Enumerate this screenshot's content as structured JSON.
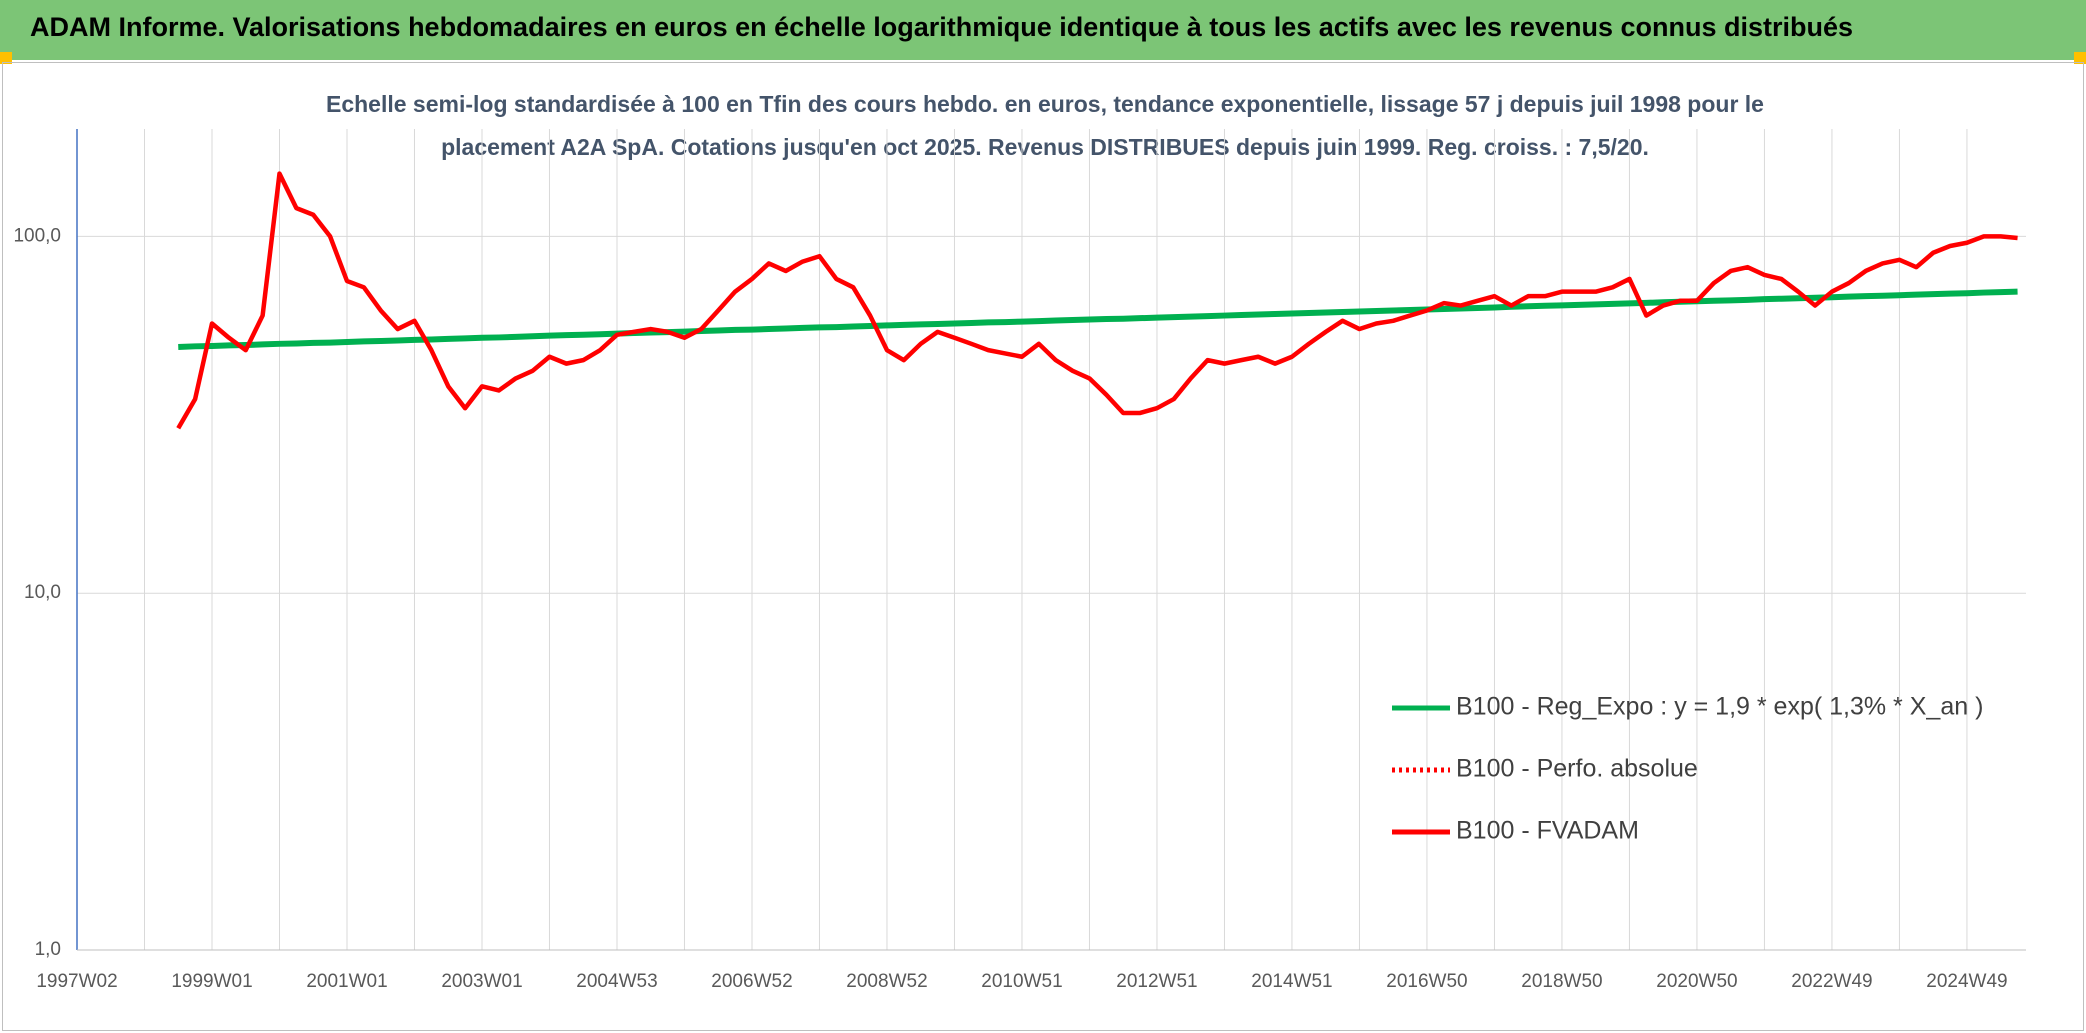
{
  "chart_data": {
    "type": "line",
    "title": "ADAM Informe. Valorisations hebdomadaires en euros en échelle logarithmique identique à tous les actifs avec les revenus connus distribués",
    "subtitle": [
      "Echelle semi-log standardisée à 100 en Tfin des cours hebdo. en euros, tendance exponentielle, lissage 57 j depuis juil 1998 pour le",
      "placement A2A SpA. Cotations jusqu'en oct 2025. Revenus DISTRIBUES depuis juin 1999. Reg. croiss. : 7,5/20."
    ],
    "categories": [
      "1997W02",
      null,
      null,
      null,
      null,
      null,
      null,
      null,
      "1999W01",
      null,
      null,
      null,
      null,
      null,
      null,
      null,
      "2001W01",
      null,
      null,
      null,
      null,
      null,
      null,
      null,
      "2003W01",
      null,
      null,
      null,
      null,
      null,
      null,
      null,
      "2004W53",
      null,
      null,
      null,
      null,
      null,
      null,
      null,
      "2006W52",
      null,
      null,
      null,
      null,
      null,
      null,
      null,
      "2008W52",
      null,
      null,
      null,
      null,
      null,
      null,
      null,
      "2010W51",
      null,
      null,
      null,
      null,
      null,
      null,
      null,
      "2012W51",
      null,
      null,
      null,
      null,
      null,
      null,
      null,
      "2014W51",
      null,
      null,
      null,
      null,
      null,
      null,
      null,
      "2016W50",
      null,
      null,
      null,
      null,
      null,
      null,
      null,
      "2018W50",
      null,
      null,
      null,
      null,
      null,
      null,
      null,
      "2020W50",
      null,
      null,
      null,
      null,
      null,
      null,
      null,
      "2022W49",
      null,
      null,
      null,
      null,
      null,
      null,
      null,
      "2024W49",
      null,
      null,
      null
    ],
    "series": [
      {
        "name": "B100 - Reg_Expo : y = 1,9 * exp( 1,3% *  X_an )",
        "color": "#00b050",
        "dash": "solid",
        "values": [
          null,
          null,
          null,
          null,
          null,
          null,
          49.0,
          49.2,
          49.3,
          49.5,
          49.6,
          49.8,
          50.0,
          50.1,
          50.3,
          50.4,
          50.6,
          50.8,
          50.9,
          51.1,
          51.3,
          51.4,
          51.6,
          51.8,
          52.0,
          52.1,
          52.3,
          52.5,
          52.7,
          52.9,
          53.0,
          53.2,
          53.4,
          53.6,
          53.8,
          53.9,
          54.1,
          54.3,
          54.5,
          54.7,
          54.8,
          55.0,
          55.2,
          55.4,
          55.6,
          55.7,
          55.9,
          56.1,
          56.3,
          56.5,
          56.7,
          56.8,
          57.0,
          57.2,
          57.4,
          57.5,
          57.7,
          57.9,
          58.1,
          58.3,
          58.5,
          58.7,
          58.8,
          59.0,
          59.2,
          59.4,
          59.6,
          59.8,
          60.0,
          60.2,
          60.4,
          60.6,
          60.8,
          61.0,
          61.2,
          61.4,
          61.6,
          61.8,
          62.0,
          62.2,
          62.4,
          62.6,
          62.8,
          63.0,
          63.2,
          63.5,
          63.7,
          63.9,
          64.1,
          64.3,
          64.5,
          64.7,
          64.9,
          65.1,
          65.4,
          65.6,
          65.8,
          66.0,
          66.2,
          66.4,
          66.7,
          66.9,
          67.1,
          67.3,
          67.5,
          67.8,
          68.0,
          68.2,
          68.4,
          68.7,
          68.9,
          69.1,
          69.3,
          69.6,
          69.8,
          70.0
        ]
      },
      {
        "name": "B100 - Perfo. absolue",
        "color": "#ff0000",
        "dash": "dotted",
        "values": [
          null,
          null,
          null,
          null,
          null,
          null,
          null,
          null,
          null,
          null,
          null,
          null,
          null,
          null,
          null,
          null,
          null,
          null,
          null,
          null,
          null,
          null,
          null,
          null,
          null,
          null,
          null,
          null,
          null,
          null,
          null,
          null,
          null,
          null,
          null,
          null,
          null,
          null,
          null,
          null,
          null,
          null,
          null,
          null,
          null,
          null,
          null,
          null,
          null,
          null,
          null,
          null,
          null,
          null,
          null,
          null,
          null,
          null,
          null,
          null,
          null,
          null,
          null,
          null,
          null,
          null,
          null,
          null,
          null,
          null,
          null,
          null,
          null,
          null,
          null,
          null,
          null,
          null,
          null,
          null,
          null,
          null,
          null,
          null,
          null,
          null,
          null,
          null,
          null,
          null,
          null,
          null,
          null,
          null,
          null,
          null,
          null,
          null,
          null,
          null,
          null,
          null,
          null,
          null,
          null,
          null,
          null,
          null,
          null,
          null,
          null,
          null,
          null,
          null,
          null,
          null
        ]
      },
      {
        "name": "B100 - FVADAM",
        "color": "#ff0000",
        "dash": "solid",
        "values": [
          null,
          null,
          null,
          null,
          null,
          null,
          29,
          35,
          57,
          52,
          48,
          60,
          150,
          120,
          115,
          100,
          75,
          72,
          62,
          55,
          58,
          48,
          38,
          33,
          38,
          37,
          40,
          42,
          46,
          44,
          45,
          48,
          53,
          54,
          55,
          54,
          52,
          55,
          62,
          70,
          76,
          84,
          80,
          85,
          88,
          76,
          72,
          60,
          48,
          45,
          50,
          54,
          52,
          50,
          48,
          47,
          46,
          50,
          45,
          42,
          40,
          36,
          32,
          32,
          33,
          35,
          40,
          45,
          44,
          45,
          46,
          44,
          46,
          50,
          54,
          58,
          55,
          57,
          58,
          60,
          62,
          65,
          64,
          66,
          68,
          64,
          68,
          68,
          70,
          70,
          70,
          72,
          76,
          60,
          64,
          66,
          66,
          74,
          80,
          82,
          78,
          76,
          70,
          64,
          70,
          74,
          80,
          84,
          86,
          82,
          90,
          94,
          96,
          100,
          100,
          99
        ]
      }
    ],
    "log_scale": true,
    "ylim": [
      1,
      200
    ],
    "yticks": [
      {
        "value": 1,
        "label": "1,0"
      },
      {
        "value": 10,
        "label": "10,0"
      },
      {
        "value": 100,
        "label": "100,0"
      }
    ],
    "grid": true
  }
}
